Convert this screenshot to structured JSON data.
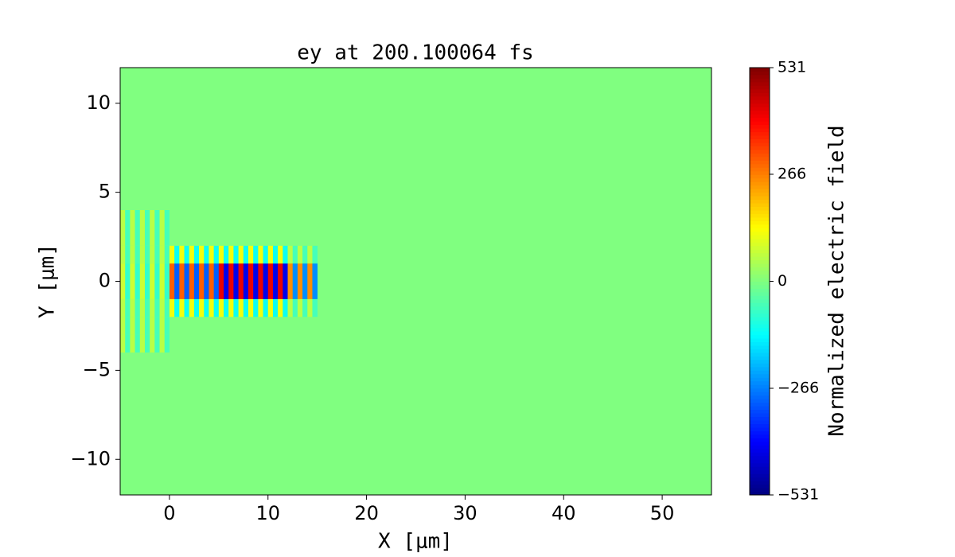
{
  "chart_data": {
    "type": "heatmap",
    "title": "ey at 200.100064 fs",
    "x_label": "X [μm]",
    "y_label": "Y [μm]",
    "colorbar_label": "Normalized electric field",
    "xlim": [
      -5,
      55
    ],
    "ylim": [
      -12,
      12
    ],
    "xticks": [
      0,
      10,
      20,
      30,
      40,
      50
    ],
    "yticks": [
      {
        "value": -10,
        "label": "−10"
      },
      {
        "value": -5,
        "label": "−5"
      },
      0,
      5,
      10
    ],
    "clim": [
      -531,
      531
    ],
    "cticks": [
      {
        "value": -531,
        "label": "−531"
      },
      {
        "value": -266,
        "label": "−266"
      },
      0,
      266,
      531
    ],
    "colormap": "jet",
    "x": [
      -4.75,
      -4.25,
      -3.75,
      -3.25,
      -2.75,
      -2.25,
      -1.75,
      -1.25,
      -0.75,
      -0.25,
      0.25,
      0.75,
      1.25,
      1.75,
      2.25,
      2.75,
      3.25,
      3.75,
      4.25,
      4.75,
      5.25,
      5.75,
      6.25,
      6.75,
      7.25,
      7.75,
      8.25,
      8.75,
      9.25,
      9.75,
      10.25,
      10.75,
      11.25,
      11.75,
      12.25,
      12.75,
      13.25,
      13.75,
      14.25,
      14.75
    ],
    "y": [
      -3.5,
      -2.5,
      -1.5,
      -0.5,
      0.5,
      1.5,
      2.5,
      3.5
    ],
    "z": [
      [
        60,
        -60,
        60,
        -60,
        60,
        -60,
        60,
        -60,
        60,
        -60,
        0,
        0,
        0,
        0,
        0,
        0,
        0,
        0,
        0,
        0,
        0,
        0,
        0,
        0,
        0,
        0,
        0,
        0,
        0,
        0,
        0,
        0,
        0,
        0,
        0,
        0,
        0,
        0,
        0,
        0
      ],
      [
        60,
        -60,
        60,
        -60,
        60,
        -60,
        60,
        -60,
        60,
        -60,
        0,
        0,
        0,
        0,
        0,
        0,
        0,
        0,
        0,
        0,
        0,
        0,
        0,
        0,
        0,
        0,
        0,
        0,
        0,
        0,
        0,
        0,
        0,
        0,
        0,
        0,
        0,
        0,
        0,
        0
      ],
      [
        60,
        -60,
        60,
        -60,
        60,
        -60,
        60,
        -60,
        60,
        -60,
        120,
        -120,
        120,
        -120,
        120,
        -120,
        120,
        -120,
        120,
        -120,
        120,
        -120,
        120,
        -120,
        120,
        -120,
        120,
        -120,
        120,
        -120,
        120,
        -120,
        120,
        -120,
        60,
        -60,
        60,
        -60,
        60,
        -60
      ],
      [
        80,
        -80,
        80,
        -80,
        80,
        -80,
        80,
        -80,
        80,
        -80,
        300,
        -300,
        300,
        -300,
        300,
        -300,
        300,
        -300,
        300,
        -300,
        420,
        -420,
        420,
        -420,
        420,
        -420,
        420,
        -420,
        420,
        -420,
        420,
        -420,
        420,
        -420,
        250,
        -250,
        250,
        -250,
        250,
        -250
      ],
      [
        80,
        -80,
        80,
        -80,
        80,
        -80,
        80,
        -80,
        80,
        -80,
        300,
        -300,
        300,
        -300,
        300,
        -300,
        300,
        -300,
        300,
        -300,
        420,
        -420,
        420,
        -420,
        420,
        -420,
        420,
        -420,
        420,
        -420,
        420,
        -420,
        420,
        -420,
        250,
        -250,
        250,
        -250,
        250,
        -250
      ],
      [
        60,
        -60,
        60,
        -60,
        60,
        -60,
        60,
        -60,
        60,
        -60,
        120,
        -120,
        120,
        -120,
        120,
        -120,
        120,
        -120,
        120,
        -120,
        120,
        -120,
        120,
        -120,
        120,
        -120,
        120,
        -120,
        120,
        -120,
        120,
        -120,
        120,
        -120,
        60,
        -60,
        60,
        -60,
        60,
        -60
      ],
      [
        60,
        -60,
        60,
        -60,
        60,
        -60,
        60,
        -60,
        60,
        -60,
        0,
        0,
        0,
        0,
        0,
        0,
        0,
        0,
        0,
        0,
        0,
        0,
        0,
        0,
        0,
        0,
        0,
        0,
        0,
        0,
        0,
        0,
        0,
        0,
        0,
        0,
        0,
        0,
        0,
        0
      ],
      [
        60,
        -60,
        60,
        -60,
        60,
        -60,
        60,
        -60,
        60,
        -60,
        0,
        0,
        0,
        0,
        0,
        0,
        0,
        0,
        0,
        0,
        0,
        0,
        0,
        0,
        0,
        0,
        0,
        0,
        0,
        0,
        0,
        0,
        0,
        0,
        0,
        0,
        0,
        0,
        0,
        0
      ]
    ]
  }
}
